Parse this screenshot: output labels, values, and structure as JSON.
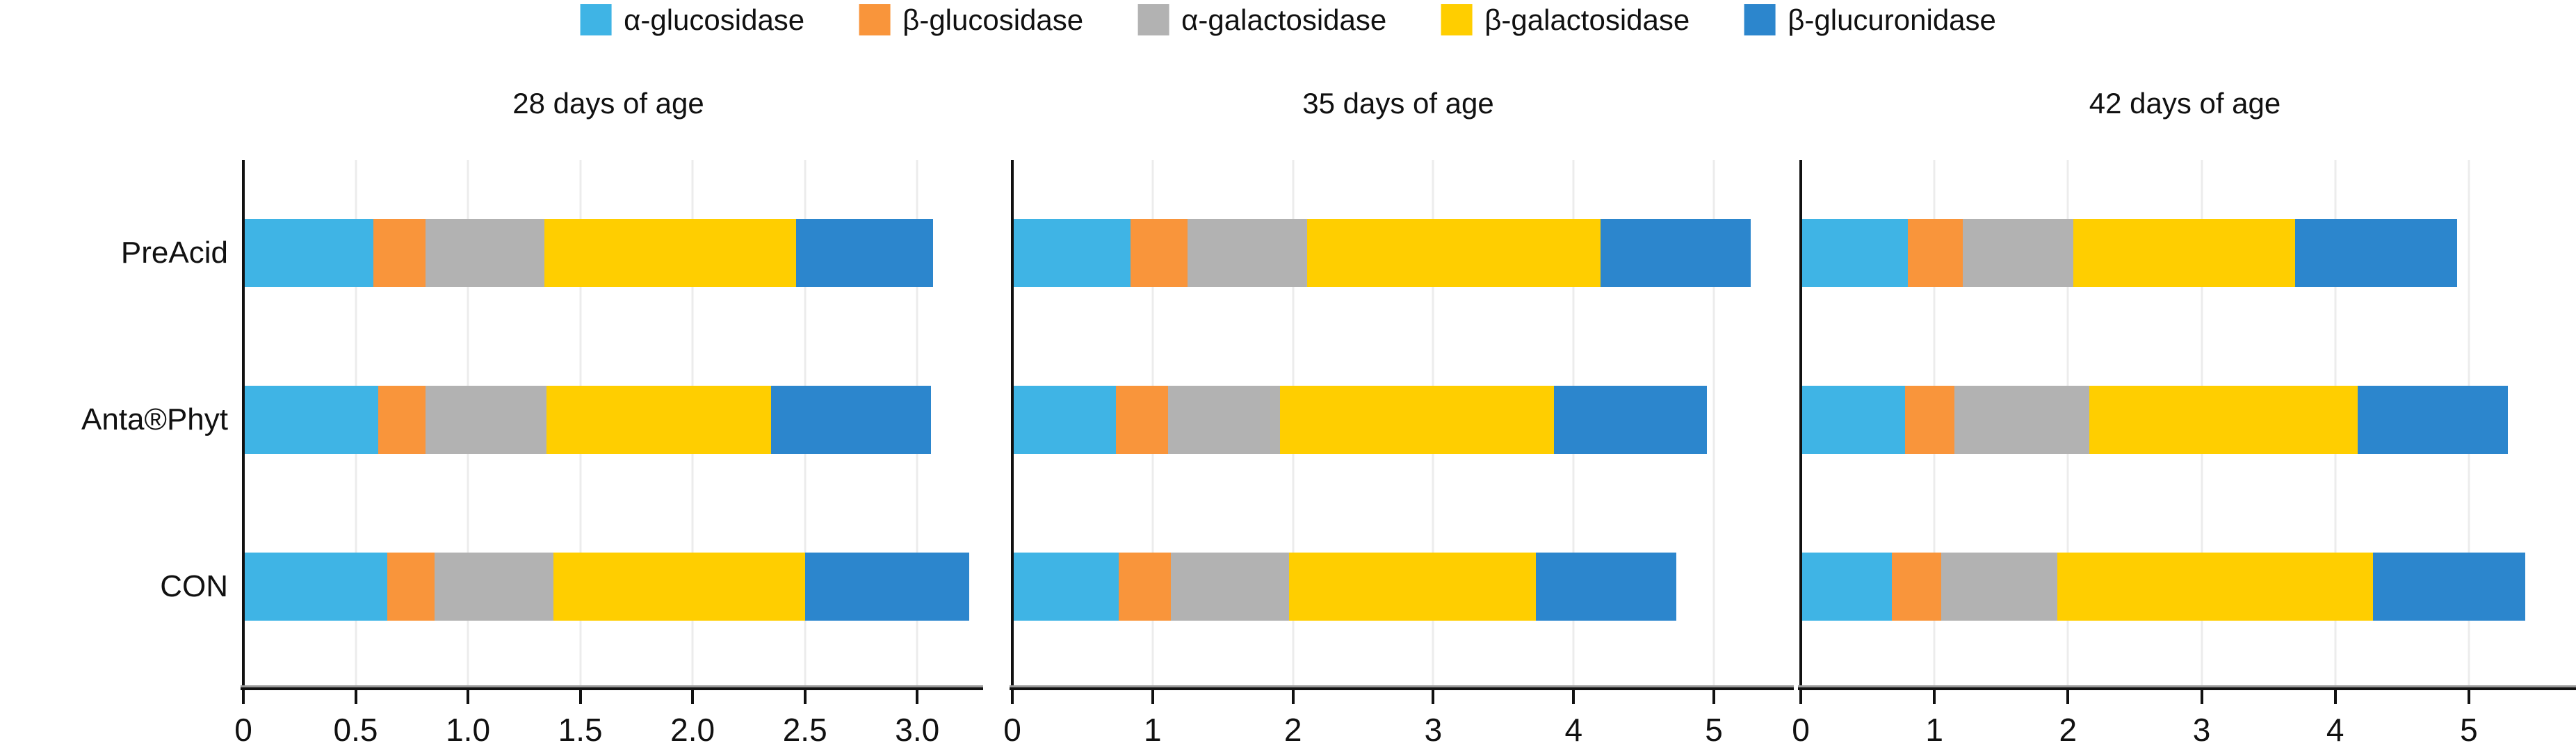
{
  "legend": {
    "items": [
      {
        "label": "α-glucosidase",
        "color": "#3FB4E5"
      },
      {
        "label": "β-glucosidase",
        "color": "#F9953B"
      },
      {
        "label": "α-galactosidase",
        "color": "#B2B2B2"
      },
      {
        "label": "β-galactosidase",
        "color": "#FFCE00"
      },
      {
        "label": "β-glucuronidase",
        "color": "#2C86CD"
      }
    ]
  },
  "categories": [
    "PreAcid",
    "Anta®Phyt",
    "CON"
  ],
  "colors": {
    "axis": "#111111",
    "gridline": "#ececec",
    "background": "#ffffff"
  },
  "chart_data": [
    {
      "type": "bar",
      "orientation": "horizontal",
      "stacked": true,
      "title": "28 days of age",
      "categories": [
        "PreAcid",
        "Anta®Phyt",
        "CON"
      ],
      "series": [
        {
          "name": "α-glucosidase",
          "color": "#3FB4E5",
          "values": [
            0.58,
            0.6,
            0.64
          ]
        },
        {
          "name": "β-glucosidase",
          "color": "#F9953B",
          "values": [
            0.23,
            0.21,
            0.21
          ]
        },
        {
          "name": "α-galactosidase",
          "color": "#B2B2B2",
          "values": [
            0.53,
            0.54,
            0.53
          ]
        },
        {
          "name": "β-galactosidase",
          "color": "#FFCE00",
          "values": [
            1.12,
            1.0,
            1.12
          ]
        },
        {
          "name": "β-glucuronidase",
          "color": "#2C86CD",
          "values": [
            0.61,
            0.71,
            0.73
          ]
        }
      ],
      "totals": [
        3.07,
        3.06,
        3.23
      ],
      "xlim": [
        0,
        3.25
      ],
      "xticks": [
        0,
        0.5,
        1.0,
        1.5,
        2.0,
        2.5,
        3.0
      ],
      "xtick_labels": [
        "0",
        "0.5",
        "1.0",
        "1.5",
        "2.0",
        "2.5",
        "3.0"
      ],
      "grid": true,
      "legend_position": "top"
    },
    {
      "type": "bar",
      "orientation": "horizontal",
      "stacked": true,
      "title": "35 days of age",
      "categories": [
        "PreAcid",
        "Anta®Phyt",
        "CON"
      ],
      "series": [
        {
          "name": "α-glucosidase",
          "color": "#3FB4E5",
          "values": [
            0.84,
            0.74,
            0.76
          ]
        },
        {
          "name": "β-glucosidase",
          "color": "#F9953B",
          "values": [
            0.41,
            0.37,
            0.37
          ]
        },
        {
          "name": "α-galactosidase",
          "color": "#B2B2B2",
          "values": [
            0.85,
            0.8,
            0.84
          ]
        },
        {
          "name": "β-galactosidase",
          "color": "#FFCE00",
          "values": [
            2.09,
            1.95,
            1.76
          ]
        },
        {
          "name": "β-glucuronidase",
          "color": "#2C86CD",
          "values": [
            1.07,
            1.09,
            1.0
          ]
        }
      ],
      "totals": [
        5.26,
        4.95,
        4.73
      ],
      "xlim": [
        0,
        5.5
      ],
      "xticks": [
        0,
        1,
        2,
        3,
        4,
        5
      ],
      "xtick_labels": [
        "0",
        "1",
        "2",
        "3",
        "4",
        "5"
      ],
      "grid": true,
      "legend_position": "top"
    },
    {
      "type": "bar",
      "orientation": "horizontal",
      "stacked": true,
      "title": "42 days of age",
      "categories": [
        "PreAcid",
        "Anta®Phyt",
        "CON"
      ],
      "series": [
        {
          "name": "α-glucosidase",
          "color": "#3FB4E5",
          "values": [
            0.8,
            0.78,
            0.68
          ]
        },
        {
          "name": "β-glucosidase",
          "color": "#F9953B",
          "values": [
            0.41,
            0.37,
            0.37
          ]
        },
        {
          "name": "α-galactosidase",
          "color": "#B2B2B2",
          "values": [
            0.83,
            1.01,
            0.87
          ]
        },
        {
          "name": "β-galactosidase",
          "color": "#FFCE00",
          "values": [
            1.66,
            2.01,
            2.36
          ]
        },
        {
          "name": "β-glucuronidase",
          "color": "#2C86CD",
          "values": [
            1.21,
            1.12,
            1.14
          ]
        }
      ],
      "totals": [
        4.91,
        5.29,
        5.42
      ],
      "xlim": [
        0,
        5.75
      ],
      "xticks": [
        0,
        1,
        2,
        3,
        4,
        5
      ],
      "xtick_labels": [
        "0",
        "1",
        "2",
        "3",
        "4",
        "5"
      ],
      "grid": true,
      "legend_position": "top"
    }
  ]
}
